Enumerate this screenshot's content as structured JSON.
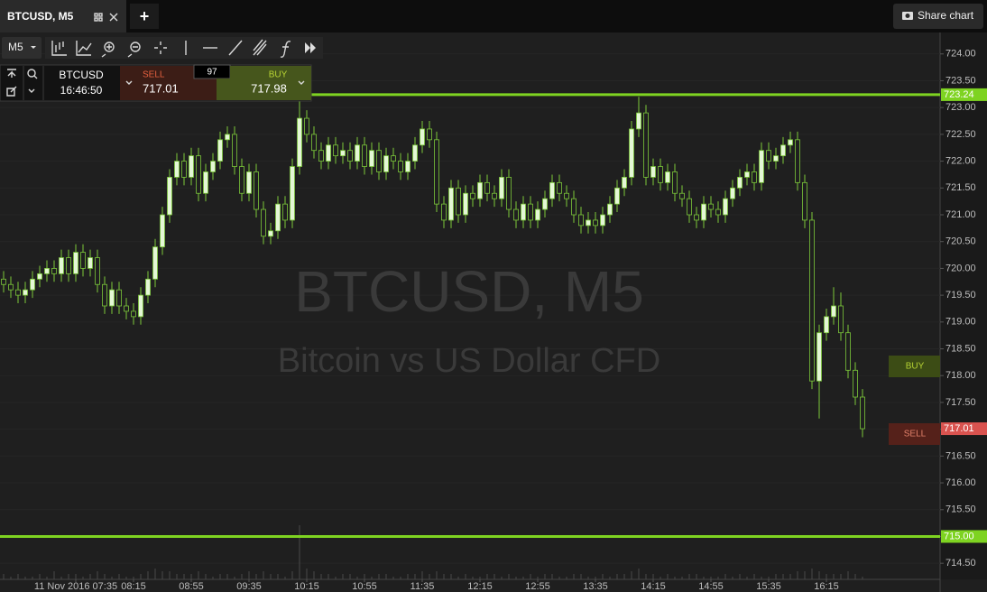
{
  "ui": {
    "tab_title": "BTCUSD, M5",
    "add_tab": "+",
    "share_chart": "Share chart",
    "interval": "M5",
    "symbol": "BTCUSD",
    "clock": "16:46:50",
    "sell_label": "SELL",
    "sell_price": "717.01",
    "spread": "97",
    "buy_label": "BUY",
    "buy_price": "717.98",
    "buy_button": "BUY",
    "sell_button": "SELL"
  },
  "chart_data": {
    "type": "candlestick",
    "title": "BTCUSD, M5",
    "subtitle": "Bitcoin vs US Dollar CFD",
    "categories": [
      null,
      null,
      null,
      null,
      null,
      null,
      null,
      null,
      null,
      null,
      "11 Nov 2016 07:35",
      null,
      null,
      null,
      null,
      null,
      null,
      null,
      "08:15",
      null,
      null,
      null,
      null,
      null,
      null,
      null,
      "08:55",
      null,
      null,
      null,
      null,
      null,
      null,
      null,
      "09:35",
      null,
      null,
      null,
      null,
      null,
      null,
      null,
      "10:15",
      null,
      null,
      null,
      null,
      null,
      null,
      null,
      "10:55",
      null,
      null,
      null,
      null,
      null,
      null,
      null,
      "11:35",
      null,
      null,
      null,
      null,
      null,
      null,
      null,
      "12:15",
      null,
      null,
      null,
      null,
      null,
      null,
      null,
      "12:55",
      null,
      null,
      null,
      null,
      null,
      null,
      null,
      "13:35",
      null,
      null,
      null,
      null,
      null,
      null,
      null,
      "14:15",
      null,
      null,
      null,
      null,
      null,
      null,
      null,
      "14:55",
      null,
      null,
      null,
      null,
      null,
      null,
      null,
      "15:35",
      null,
      null,
      null,
      null,
      null,
      null,
      null,
      "16:15",
      null,
      null,
      null,
      null,
      null
    ],
    "ohlc": [
      [
        719.8,
        719.95,
        719.55,
        719.7
      ],
      [
        719.7,
        719.85,
        719.45,
        719.6
      ],
      [
        719.6,
        719.75,
        719.35,
        719.5
      ],
      [
        719.5,
        719.75,
        719.35,
        719.6
      ],
      [
        719.6,
        719.95,
        719.45,
        719.8
      ],
      [
        719.8,
        720.05,
        719.65,
        719.9
      ],
      [
        719.9,
        720.15,
        719.75,
        720.0
      ],
      [
        720.0,
        720.15,
        719.75,
        719.9
      ],
      [
        719.9,
        720.35,
        719.75,
        720.2
      ],
      [
        720.2,
        720.35,
        719.75,
        719.9
      ],
      [
        719.9,
        720.45,
        719.75,
        720.3
      ],
      [
        720.3,
        720.45,
        719.85,
        720.0
      ],
      [
        720.0,
        720.35,
        719.85,
        720.2
      ],
      [
        720.2,
        720.35,
        719.55,
        719.7
      ],
      [
        719.7,
        719.85,
        719.15,
        719.3
      ],
      [
        719.3,
        719.75,
        719.15,
        719.6
      ],
      [
        719.6,
        719.75,
        719.15,
        719.3
      ],
      [
        719.3,
        719.45,
        719.05,
        719.2
      ],
      [
        719.2,
        719.35,
        718.95,
        719.1
      ],
      [
        719.1,
        719.65,
        718.95,
        719.5
      ],
      [
        719.5,
        719.95,
        719.35,
        719.8
      ],
      [
        719.8,
        720.55,
        719.65,
        720.4
      ],
      [
        720.4,
        721.15,
        720.25,
        721.0
      ],
      [
        721.0,
        721.85,
        720.85,
        721.7
      ],
      [
        721.7,
        722.15,
        721.55,
        722.0
      ],
      [
        722.0,
        722.15,
        721.55,
        721.7
      ],
      [
        721.7,
        722.25,
        721.55,
        722.1
      ],
      [
        722.1,
        722.25,
        721.25,
        721.4
      ],
      [
        721.4,
        721.95,
        721.25,
        721.8
      ],
      [
        721.8,
        722.15,
        721.65,
        722.0
      ],
      [
        722.0,
        722.55,
        721.85,
        722.4
      ],
      [
        722.4,
        722.65,
        722.25,
        722.5
      ],
      [
        722.5,
        722.65,
        721.75,
        721.9
      ],
      [
        721.9,
        722.05,
        721.25,
        721.4
      ],
      [
        721.4,
        721.95,
        721.25,
        721.8
      ],
      [
        721.8,
        721.95,
        720.95,
        721.1
      ],
      [
        721.1,
        721.25,
        720.45,
        720.6
      ],
      [
        720.6,
        720.85,
        720.45,
        720.7
      ],
      [
        720.7,
        721.35,
        720.55,
        721.2
      ],
      [
        721.2,
        721.35,
        720.75,
        720.9
      ],
      [
        720.9,
        722.05,
        720.75,
        721.9
      ],
      [
        721.9,
        723.2,
        721.75,
        722.8
      ],
      [
        722.8,
        722.95,
        722.35,
        722.5
      ],
      [
        722.5,
        722.65,
        722.05,
        722.2
      ],
      [
        722.2,
        722.35,
        721.85,
        722.0
      ],
      [
        722.0,
        722.45,
        721.85,
        722.3
      ],
      [
        722.3,
        722.45,
        721.95,
        722.1
      ],
      [
        722.1,
        722.35,
        721.95,
        722.2
      ],
      [
        722.2,
        722.35,
        721.85,
        722.0
      ],
      [
        722.0,
        722.45,
        721.85,
        722.3
      ],
      [
        722.3,
        722.45,
        721.75,
        721.9
      ],
      [
        721.9,
        722.35,
        721.75,
        722.2
      ],
      [
        722.2,
        722.35,
        721.65,
        721.8
      ],
      [
        721.8,
        722.25,
        721.65,
        722.1
      ],
      [
        722.1,
        722.25,
        721.85,
        722.0
      ],
      [
        722.0,
        722.15,
        721.65,
        721.8
      ],
      [
        721.8,
        722.15,
        721.65,
        722.0
      ],
      [
        722.0,
        722.45,
        721.85,
        722.3
      ],
      [
        722.3,
        722.75,
        722.15,
        722.6
      ],
      [
        722.6,
        722.75,
        722.25,
        722.4
      ],
      [
        722.4,
        722.55,
        721.05,
        721.2
      ],
      [
        721.2,
        721.35,
        720.75,
        720.9
      ],
      [
        720.9,
        721.65,
        720.75,
        721.5
      ],
      [
        721.5,
        721.65,
        720.85,
        721.0
      ],
      [
        721.0,
        721.55,
        720.85,
        721.4
      ],
      [
        721.4,
        721.55,
        721.15,
        721.3
      ],
      [
        721.3,
        721.75,
        721.15,
        721.6
      ],
      [
        721.6,
        721.75,
        721.25,
        721.4
      ],
      [
        721.4,
        721.55,
        721.15,
        721.3
      ],
      [
        721.3,
        721.85,
        721.15,
        721.7
      ],
      [
        721.7,
        721.85,
        720.95,
        721.1
      ],
      [
        721.1,
        721.25,
        720.75,
        720.9
      ],
      [
        720.9,
        721.35,
        720.75,
        721.2
      ],
      [
        721.2,
        721.35,
        720.75,
        720.9
      ],
      [
        720.9,
        721.25,
        720.75,
        721.1
      ],
      [
        721.1,
        721.45,
        720.95,
        721.3
      ],
      [
        721.3,
        721.75,
        721.15,
        721.6
      ],
      [
        721.6,
        721.75,
        721.25,
        721.4
      ],
      [
        721.4,
        721.55,
        721.15,
        721.3
      ],
      [
        721.3,
        721.45,
        720.85,
        721.0
      ],
      [
        721.0,
        721.15,
        720.65,
        720.8
      ],
      [
        720.8,
        721.05,
        720.65,
        720.9
      ],
      [
        720.9,
        721.05,
        720.65,
        720.8
      ],
      [
        720.8,
        721.15,
        720.65,
        721.0
      ],
      [
        721.0,
        721.35,
        720.85,
        721.2
      ],
      [
        721.2,
        721.65,
        721.05,
        721.5
      ],
      [
        721.5,
        721.85,
        721.35,
        721.7
      ],
      [
        721.7,
        722.75,
        721.55,
        722.6
      ],
      [
        722.6,
        723.2,
        722.45,
        722.9
      ],
      [
        722.9,
        723.05,
        721.55,
        721.7
      ],
      [
        721.7,
        722.05,
        721.55,
        721.9
      ],
      [
        721.9,
        722.05,
        721.45,
        721.6
      ],
      [
        721.6,
        721.95,
        721.45,
        721.8
      ],
      [
        721.8,
        721.95,
        721.25,
        721.4
      ],
      [
        721.4,
        721.55,
        721.15,
        721.3
      ],
      [
        721.3,
        721.45,
        720.85,
        721.0
      ],
      [
        721.0,
        721.15,
        720.75,
        720.9
      ],
      [
        720.9,
        721.35,
        720.75,
        721.2
      ],
      [
        721.2,
        721.35,
        720.95,
        721.1
      ],
      [
        721.1,
        721.25,
        720.85,
        721.0
      ],
      [
        721.0,
        721.45,
        720.85,
        721.3
      ],
      [
        721.3,
        721.65,
        721.15,
        721.5
      ],
      [
        721.5,
        721.85,
        721.35,
        721.7
      ],
      [
        721.7,
        721.95,
        721.55,
        721.8
      ],
      [
        721.8,
        721.95,
        721.45,
        721.6
      ],
      [
        721.6,
        722.35,
        721.45,
        722.2
      ],
      [
        722.2,
        722.35,
        721.85,
        722.0
      ],
      [
        722.0,
        722.25,
        721.85,
        722.1
      ],
      [
        722.1,
        722.45,
        721.95,
        722.3
      ],
      [
        722.3,
        722.55,
        722.15,
        722.4
      ],
      [
        722.4,
        722.55,
        721.45,
        721.6
      ],
      [
        721.6,
        721.75,
        720.75,
        720.9
      ],
      [
        720.9,
        721.05,
        717.75,
        717.9
      ],
      [
        717.9,
        718.95,
        717.2,
        718.8
      ],
      [
        718.8,
        719.25,
        718.65,
        719.1
      ],
      [
        719.1,
        719.65,
        718.95,
        719.3
      ],
      [
        719.3,
        719.55,
        718.65,
        718.8
      ],
      [
        718.8,
        718.95,
        717.95,
        718.1
      ],
      [
        718.1,
        718.25,
        717.45,
        717.6
      ],
      [
        717.6,
        717.75,
        716.85,
        717.01
      ]
    ],
    "volume": [
      2,
      1,
      2,
      1,
      1,
      2,
      1,
      3,
      1,
      2,
      2,
      1,
      2,
      3,
      2,
      1,
      2,
      1,
      1,
      2,
      3,
      4,
      3,
      3,
      2,
      2,
      2,
      3,
      2,
      1,
      2,
      2,
      1,
      2,
      3,
      2,
      3,
      2,
      2,
      1,
      3,
      20,
      4,
      3,
      2,
      2,
      1,
      2,
      2,
      1,
      2,
      1,
      2,
      2,
      1,
      1,
      2,
      2,
      3,
      2,
      3,
      2,
      2,
      1,
      2,
      1,
      1,
      2,
      2,
      1,
      2,
      1,
      1,
      2,
      1,
      2,
      2,
      1,
      1,
      2,
      2,
      1,
      1,
      2,
      1,
      2,
      2,
      3,
      4,
      2,
      2,
      1,
      2,
      1,
      1,
      2,
      2,
      1,
      1,
      1,
      2,
      1,
      2,
      1,
      2,
      1,
      1,
      2,
      2,
      2,
      3,
      3,
      4,
      3,
      2,
      2,
      2,
      3,
      2,
      1
    ],
    "up_color": "#e4f7d6",
    "down_color": "#1f1f1f",
    "wick_color": "#7cc83a",
    "volume_color": "#4a4a4a",
    "ylim": [
      714.2,
      724.4
    ],
    "yticks": [
      {
        "value": 714.5,
        "label": "714.50"
      },
      {
        "value": 715,
        "label": "715.00"
      },
      {
        "value": 715.5,
        "label": "715.50"
      },
      {
        "value": 716,
        "label": "716.00"
      },
      {
        "value": 716.5,
        "label": "716.50"
      },
      {
        "value": 717,
        "label": "717.00"
      },
      {
        "value": 717.5,
        "label": "717.50"
      },
      {
        "value": 718,
        "label": "718.00"
      },
      {
        "value": 718.5,
        "label": "718.50"
      },
      {
        "value": 719,
        "label": "719.00"
      },
      {
        "value": 719.5,
        "label": "719.50"
      },
      {
        "value": 720,
        "label": "720.00"
      },
      {
        "value": 720.5,
        "label": "720.50"
      },
      {
        "value": 721,
        "label": "721.00"
      },
      {
        "value": 721.5,
        "label": "721.50"
      },
      {
        "value": 722,
        "label": "722.00"
      },
      {
        "value": 722.5,
        "label": "722.50"
      },
      {
        "value": 723,
        "label": "723.00"
      },
      {
        "value": 723.5,
        "label": "723.50"
      },
      {
        "value": 724,
        "label": "724.00"
      }
    ],
    "grid": true,
    "levels": [
      {
        "value": 723.24,
        "label": "723.24",
        "color": "#7ed321"
      },
      {
        "value": 715,
        "label": "715.00",
        "color": "#7ed321"
      }
    ],
    "last_price": 717.01,
    "last_price_color": "#d9534f"
  }
}
